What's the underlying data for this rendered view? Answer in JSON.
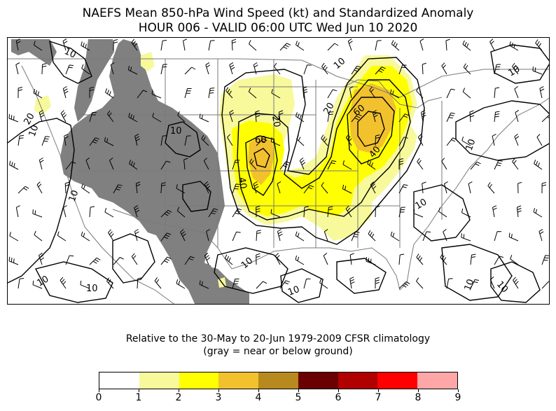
{
  "title": {
    "line1": "NAEFS Mean 850-hPa Wind Speed (kt) and Standardized Anomaly",
    "line2": "HOUR 006 - VALID 06:00 UTC Wed Jun 10 2020"
  },
  "note": {
    "line1": "Relative to the 30-May to 20-Jun 1979-2009 CFSR climatology",
    "line2": "(gray = near or below ground)"
  },
  "colorbar": {
    "ticks": [
      "0",
      "1",
      "2",
      "3",
      "4",
      "5",
      "6",
      "7",
      "8",
      "9"
    ],
    "colors": [
      "#ffffff",
      "#f7f99b",
      "#ffff00",
      "#f2c12e",
      "#b8891e",
      "#6b0000",
      "#b00000",
      "#ff0000",
      "#ffa6a6"
    ]
  },
  "contour_labels": [
    {
      "text": "10",
      "name": "contour-label-nw-10"
    },
    {
      "text": "20",
      "name": "contour-label-w-20"
    },
    {
      "text": "10",
      "name": "contour-label-w-10"
    },
    {
      "text": "10",
      "name": "contour-label-great-basin-10"
    },
    {
      "text": "10",
      "name": "contour-label-southwest-10"
    },
    {
      "text": "10",
      "name": "contour-label-pacific-10"
    },
    {
      "text": "10",
      "name": "contour-label-baja-10"
    },
    {
      "text": "60",
      "name": "contour-label-plains-60"
    },
    {
      "text": "40",
      "name": "contour-label-plains-40"
    },
    {
      "text": "20",
      "name": "contour-label-plains-20"
    },
    {
      "text": "60",
      "name": "contour-label-midwest-60"
    },
    {
      "text": "40",
      "name": "contour-label-midwest-40"
    },
    {
      "text": "20",
      "name": "contour-label-midwest-20"
    },
    {
      "text": "10",
      "name": "contour-label-midwest-10"
    },
    {
      "text": "10",
      "name": "contour-label-gulf-10"
    },
    {
      "text": "10",
      "name": "contour-label-southeast-10"
    },
    {
      "text": "10",
      "name": "contour-label-atlantic-10"
    },
    {
      "text": "10",
      "name": "contour-label-atlantic-2-10"
    },
    {
      "text": "10",
      "name": "contour-label-northeast-10"
    },
    {
      "text": "10",
      "name": "contour-label-texas-10"
    },
    {
      "text": "10",
      "name": "contour-label-east-10"
    }
  ]
}
